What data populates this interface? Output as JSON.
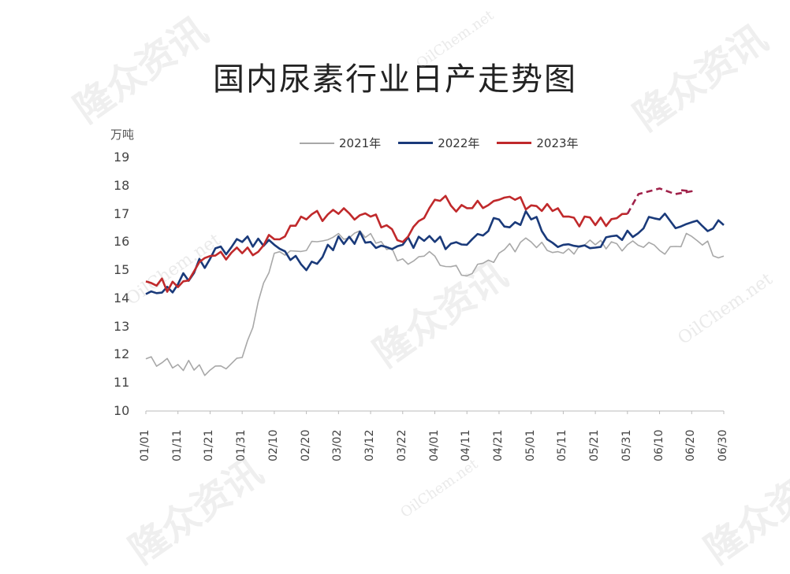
{
  "title": "国内尿素行业日产走势图",
  "unit": "万吨",
  "legend": [
    {
      "label": "2021年",
      "color": "#a8a8a8"
    },
    {
      "label": "2022年",
      "color": "#1a3a7a"
    },
    {
      "label": "2023年",
      "color": "#c0292b"
    }
  ],
  "watermarks": {
    "cn": "隆众资讯",
    "en": "OilChem.net"
  },
  "chart_data": {
    "type": "line",
    "title": "国内尿素行业日产走势图",
    "ylabel": "万吨",
    "xlabel": "",
    "ylim": [
      10,
      19
    ],
    "yticks": [
      10,
      11,
      12,
      13,
      14,
      15,
      16,
      17,
      18,
      19
    ],
    "categories": [
      "01/01",
      "01/11",
      "01/21",
      "01/31",
      "02/10",
      "02/20",
      "03/02",
      "03/12",
      "03/22",
      "04/01",
      "04/11",
      "04/21",
      "05/01",
      "05/11",
      "05/21",
      "05/31",
      "06/10",
      "06/20",
      "06/30"
    ],
    "xticks": [
      "01/01",
      "01/11",
      "01/21",
      "01/31",
      "02/10",
      "02/20",
      "03/02",
      "03/12",
      "03/22",
      "04/01",
      "04/11",
      "04/21",
      "05/01",
      "05/11",
      "05/21",
      "05/31",
      "06/10",
      "06/20",
      "06/30"
    ],
    "grid": false,
    "legend_position": "top",
    "series": [
      {
        "name": "2021年",
        "color": "#a8a8a8",
        "values": [
          11.85,
          11.65,
          11.45,
          11.9,
          15.6,
          15.7,
          16.3,
          16.3,
          15.4,
          15.5,
          14.8,
          15.6,
          16.0,
          15.6,
          15.9,
          15.9,
          15.7,
          16.2,
          15.5
        ]
      },
      {
        "name": "2022年",
        "color": "#1a3a7a",
        "values": [
          14.15,
          14.5,
          15.4,
          16.0,
          15.9,
          15.0,
          16.2,
          16.0,
          15.9,
          16.0,
          15.9,
          16.8,
          16.8,
          15.9,
          15.8,
          16.4,
          16.8,
          16.7,
          16.6
        ]
      },
      {
        "name": "2023年",
        "color": "#c0292b",
        "values": [
          14.6,
          14.4,
          15.5,
          15.6,
          16.1,
          16.8,
          17.0,
          16.9,
          16.0,
          17.5,
          17.2,
          17.5,
          17.3,
          16.9,
          16.6,
          17.0,
          17.9,
          17.8,
          null
        ],
        "dashed_from": "05/31"
      }
    ]
  }
}
